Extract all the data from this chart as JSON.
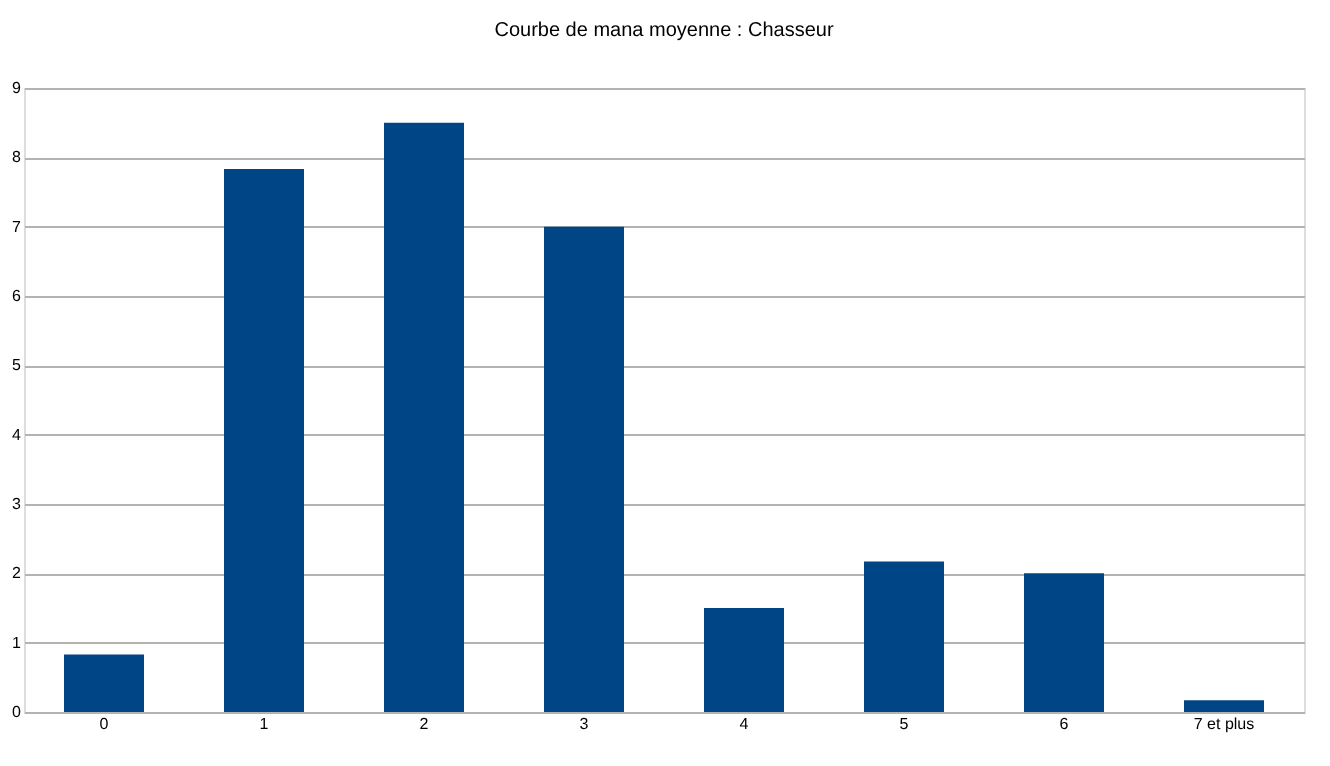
{
  "chart_data": {
    "type": "bar",
    "title": "Courbe de mana moyenne : Chasseur",
    "categories": [
      "0",
      "1",
      "2",
      "3",
      "4",
      "5",
      "6",
      "7 et plus"
    ],
    "values": [
      0.83,
      7.83,
      8.5,
      7.0,
      1.5,
      2.17,
      2.0,
      0.17
    ],
    "color": "#004586",
    "ylim": [
      0,
      9
    ],
    "yticks": [
      0,
      1,
      2,
      3,
      4,
      5,
      6,
      7,
      8,
      9
    ],
    "grid": "y"
  }
}
